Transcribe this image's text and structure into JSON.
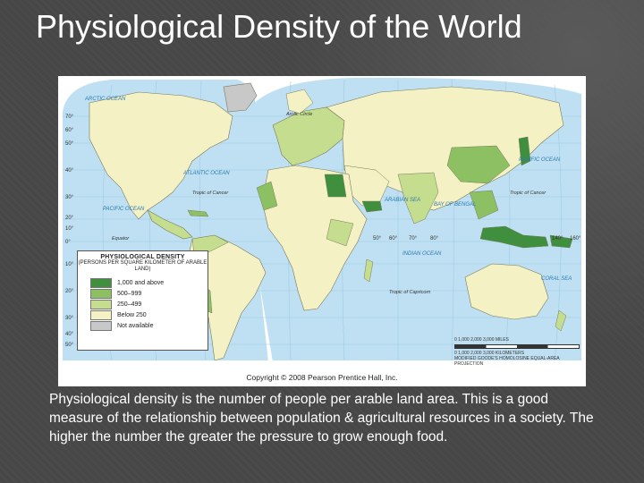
{
  "slide": {
    "title": "Physiological Density of the World",
    "caption": "Physiological density is the number of people per arable land area.  This is a good measure of the relationship between population & agricultural resources in a society. The higher the number the greater the pressure to grow enough food."
  },
  "map": {
    "legend": {
      "title": "PHYSIOLOGICAL DENSITY",
      "subtitle": "(PERSONS PER SQUARE KILOMETER OF ARABLE LAND)",
      "items": [
        {
          "label": "1,000 and above",
          "color": "#3f8f3f"
        },
        {
          "label": "500–999",
          "color": "#8cc063"
        },
        {
          "label": "250–499",
          "color": "#c4dd8e"
        },
        {
          "label": "Below 250",
          "color": "#f4f1c4"
        },
        {
          "label": "Not available",
          "color": "#c8c8c8"
        }
      ]
    },
    "ocean_labels": {
      "arctic": "ARCTIC OCEAN",
      "atlantic": "ATLANTIC OCEAN",
      "pacific_w": "PACIFIC OCEAN",
      "pacific_e": "PACIFIC OCEAN",
      "indian": "INDIAN OCEAN",
      "arabian": "ARABIAN SEA",
      "bengal": "BAY OF BENGAL",
      "coral": "CORAL SEA",
      "arctic_circle": "Arctic Circle",
      "cancer_w": "Tropic of Cancer",
      "cancer_e": "Tropic of Cancer",
      "equator": "Equator",
      "capricorn": "Tropic of Capricorn"
    },
    "lat_labels": [
      "70°",
      "60°",
      "50°",
      "40°",
      "30°",
      "20°",
      "10°",
      "0°",
      "10°",
      "20°",
      "30°",
      "40°",
      "50°"
    ],
    "lon_labels": [
      "50°",
      "60°",
      "70°",
      "80°",
      "140°",
      "160°"
    ],
    "scale": {
      "miles": "0     1,000     2,000     3,000 MILES",
      "km": "0  1,000  2,000  3,000 KILOMETERS",
      "projection": "MODIFIED GOODE'S HOMOLOSINE EQUAL-AREA PROJECTION"
    },
    "copyright": "Copyright © 2008 Pearson Prentice Hall, Inc."
  }
}
